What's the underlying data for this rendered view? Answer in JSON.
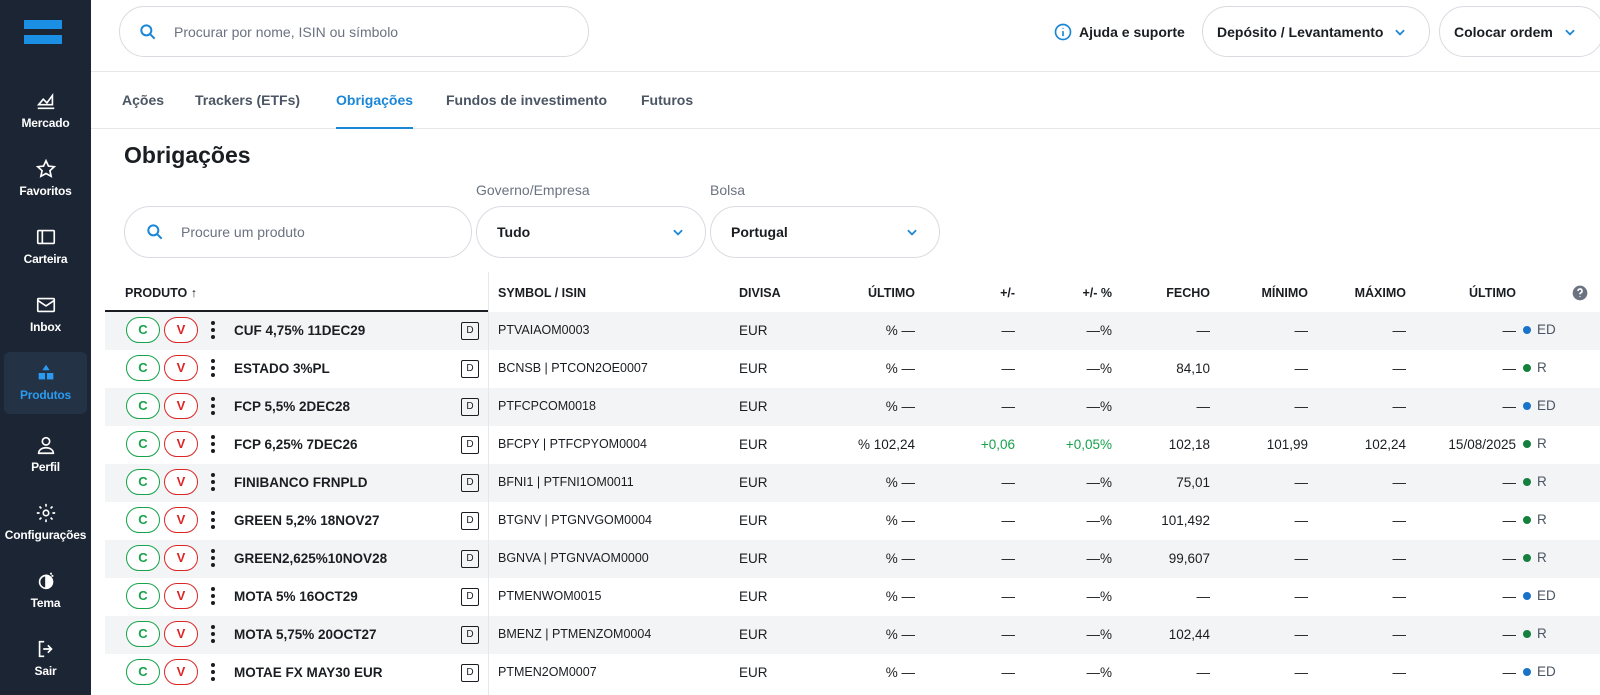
{
  "sidebar": {
    "items": [
      {
        "label": "Mercado",
        "icon": "chart-area-icon"
      },
      {
        "label": "Favoritos",
        "icon": "star-icon"
      },
      {
        "label": "Carteira",
        "icon": "wallet-icon"
      },
      {
        "label": "Inbox",
        "icon": "mail-icon"
      },
      {
        "label": "Produtos",
        "icon": "shapes-icon"
      },
      {
        "label": "Perfil",
        "icon": "user-icon"
      },
      {
        "label": "Configurações",
        "icon": "gear-icon"
      },
      {
        "label": "Tema",
        "icon": "theme-icon"
      },
      {
        "label": "Sair",
        "icon": "logout-icon"
      }
    ]
  },
  "header": {
    "search_placeholder": "Procurar por nome, ISIN ou símbolo",
    "help_label": "Ajuda e suporte",
    "deposit_label": "Depósito / Levantamento",
    "order_label": "Colocar ordem"
  },
  "tabs": [
    "Ações",
    "Trackers (ETFs)",
    "Obrigações",
    "Fundos de investimento",
    "Futuros"
  ],
  "page": {
    "title": "Obrigações",
    "product_search_placeholder": "Procure um produto",
    "gov_label": "Governo/Empresa",
    "gov_value": "Tudo",
    "bolsa_label": "Bolsa",
    "bolsa_value": "Portugal"
  },
  "table": {
    "headers": {
      "produto": "PRODUTO ↑",
      "symbol": "SYMBOL / ISIN",
      "divisa": "DIVISA",
      "ultimo": "ÚLTIMO",
      "change": "+/-",
      "change_pct": "+/- %",
      "fecho": "FECHO",
      "minimo": "MÍNIMO",
      "maximo": "MÁXIMO",
      "ultimo_date": "ÚLTIMO"
    },
    "buy_label": "C",
    "sell_label": "V",
    "d_label": "D",
    "rows": [
      {
        "name": "CUF 4,75% 11DEC29",
        "symbol": "PTVAIAOM0003",
        "currency": "EUR",
        "last": "% —",
        "change": "—",
        "change_pct": "—%",
        "close": "—",
        "min": "—",
        "max": "—",
        "last_date": "—",
        "status": "ED"
      },
      {
        "name": "ESTADO 3%PL",
        "symbol": "BCNSB | PTCON2OE0007",
        "currency": "EUR",
        "last": "% —",
        "change": "—",
        "change_pct": "—%",
        "close": "84,10",
        "min": "—",
        "max": "—",
        "last_date": "—",
        "status": "R"
      },
      {
        "name": "FCP 5,5% 2DEC28",
        "symbol": "PTFCPCOM0018",
        "currency": "EUR",
        "last": "% —",
        "change": "—",
        "change_pct": "—%",
        "close": "—",
        "min": "—",
        "max": "—",
        "last_date": "—",
        "status": "ED"
      },
      {
        "name": "FCP 6,25% 7DEC26",
        "symbol": "BFCPY | PTFCPYOM0004",
        "currency": "EUR",
        "last": "% 102,24",
        "change": "+0,06",
        "change_pct": "+0,05%",
        "close": "102,18",
        "min": "101,99",
        "max": "102,24",
        "last_date": "15/08/2025",
        "status": "R"
      },
      {
        "name": "FINIBANCO FRNPLD",
        "symbol": "BFNI1 | PTFNI1OM0011",
        "currency": "EUR",
        "last": "% —",
        "change": "—",
        "change_pct": "—%",
        "close": "75,01",
        "min": "—",
        "max": "—",
        "last_date": "—",
        "status": "R"
      },
      {
        "name": "GREEN 5,2% 18NOV27",
        "symbol": "BTGNV | PTGNVGOM0004",
        "currency": "EUR",
        "last": "% —",
        "change": "—",
        "change_pct": "—%",
        "close": "101,492",
        "min": "—",
        "max": "—",
        "last_date": "—",
        "status": "R"
      },
      {
        "name": "GREEN2,625%10NOV28",
        "symbol": "BGNVA | PTGNVAOM0000",
        "currency": "EUR",
        "last": "% —",
        "change": "—",
        "change_pct": "—%",
        "close": "99,607",
        "min": "—",
        "max": "—",
        "last_date": "—",
        "status": "R"
      },
      {
        "name": "MOTA 5% 16OCT29",
        "symbol": "PTMENWOM0015",
        "currency": "EUR",
        "last": "% —",
        "change": "—",
        "change_pct": "—%",
        "close": "—",
        "min": "—",
        "max": "—",
        "last_date": "—",
        "status": "ED"
      },
      {
        "name": "MOTA 5,75% 20OCT27",
        "symbol": "BMENZ | PTMENZOM0004",
        "currency": "EUR",
        "last": "% —",
        "change": "—",
        "change_pct": "—%",
        "close": "102,44",
        "min": "—",
        "max": "—",
        "last_date": "—",
        "status": "R"
      },
      {
        "name": "MOTAE FX MAY30 EUR",
        "symbol": "PTMEN2OM0007",
        "currency": "EUR",
        "last": "% —",
        "change": "—",
        "change_pct": "—%",
        "close": "—",
        "min": "—",
        "max": "—",
        "last_date": "—",
        "status": "ED"
      }
    ]
  },
  "colors": {
    "accent": "#1a86d6",
    "sidebar_bg": "#1c2533",
    "positive": "#16a34a",
    "status_ed": "#1a73c9",
    "status_r": "#15803d"
  }
}
